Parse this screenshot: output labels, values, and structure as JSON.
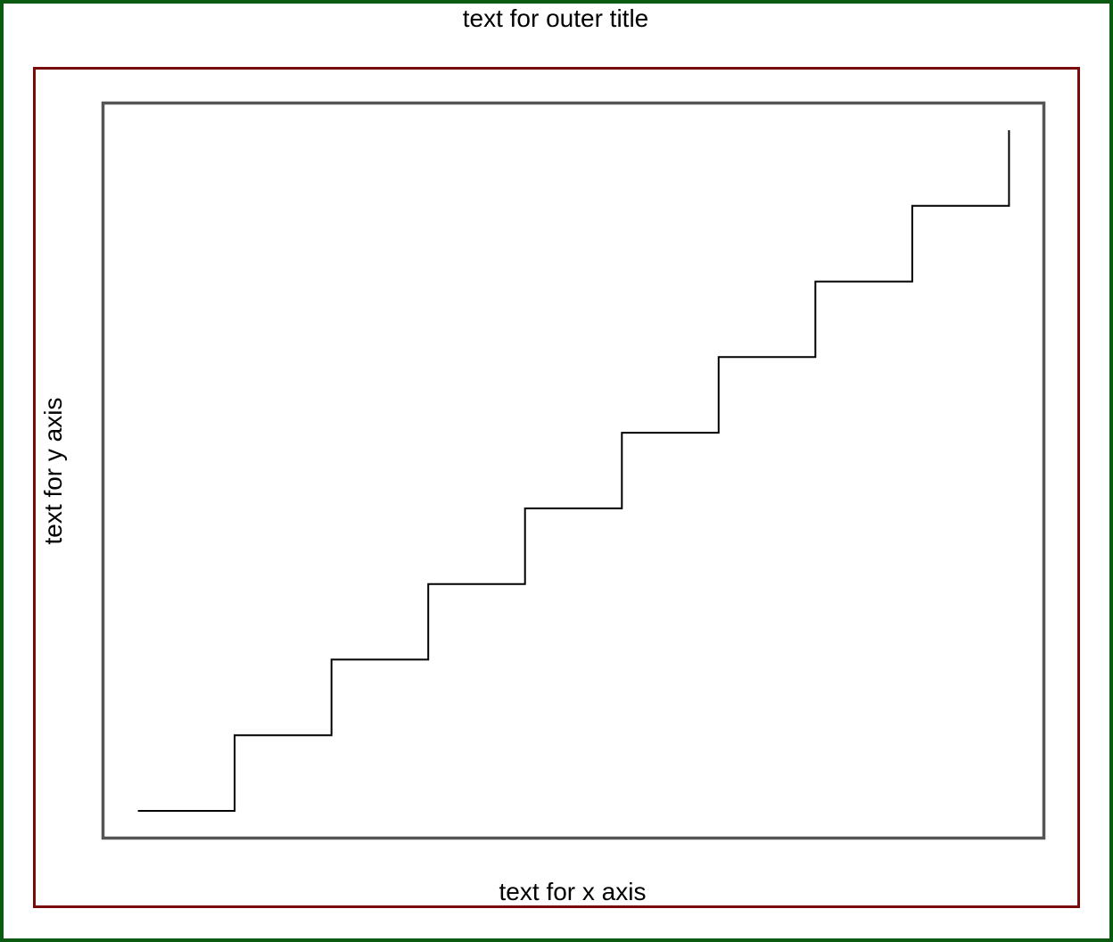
{
  "colors": {
    "outer_frame": "#0b5a12",
    "middle_frame": "#7a0b0b",
    "plot_frame": "#555555",
    "line": "#000000",
    "background": "#ffffff"
  },
  "chart_data": {
    "type": "line",
    "step": true,
    "title": "text for outer title",
    "xlabel": "text for x axis",
    "ylabel": "text for y axis",
    "series": [
      {
        "x": [
          1,
          2,
          3,
          4,
          5,
          6,
          7,
          8,
          9,
          10
        ],
        "y": [
          1,
          2,
          3,
          4,
          5,
          6,
          7,
          8,
          9,
          10
        ]
      }
    ],
    "xlim": [
      0.64,
      10.36
    ],
    "ylim": [
      0.64,
      10.36
    ],
    "grid": false,
    "ticks": false
  }
}
